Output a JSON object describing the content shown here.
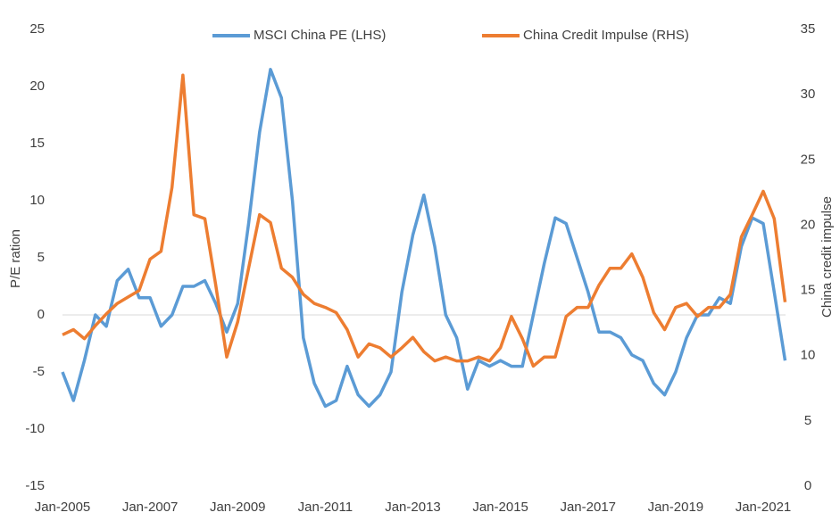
{
  "chart_data": {
    "type": "line",
    "categories": [
      "Jan-2005",
      null,
      null,
      null,
      null,
      null,
      null,
      null,
      "Jan-2007",
      null,
      null,
      null,
      null,
      null,
      null,
      null,
      "Jan-2009",
      null,
      null,
      null,
      null,
      null,
      null,
      null,
      "Jan-2011",
      null,
      null,
      null,
      null,
      null,
      null,
      null,
      "Jan-2013",
      null,
      null,
      null,
      null,
      null,
      null,
      null,
      "Jan-2015",
      null,
      null,
      null,
      null,
      null,
      null,
      null,
      "Jan-2017",
      null,
      null,
      null,
      null,
      null,
      null,
      null,
      "Jan-2019",
      null,
      null,
      null,
      null,
      null,
      null,
      null,
      "Jan-2021",
      null,
      null
    ],
    "series": [
      {
        "name": "MSCI China PE (LHS)",
        "color": "#5b9bd5",
        "axis": "y",
        "values": [
          -5,
          -7.5,
          -4,
          0,
          -1,
          3,
          4,
          1.5,
          1.5,
          -1,
          0,
          2.5,
          2.5,
          3,
          1,
          -1.5,
          1,
          8,
          16,
          21.5,
          19,
          10,
          -2,
          -6,
          -8,
          -7.5,
          -4.5,
          -7,
          -8,
          -7,
          -5,
          2,
          7,
          10.5,
          6,
          0,
          -2,
          -6.5,
          -4,
          -4.5,
          -4,
          -4.5,
          -4.5,
          0,
          4.5,
          8.5,
          8,
          5,
          2,
          -1.5,
          -1.5,
          -2,
          -3.5,
          -4,
          -6,
          -7,
          -5,
          -2,
          0,
          0,
          1.5,
          1,
          6,
          8.5,
          8,
          2,
          -4
        ]
      },
      {
        "name": "China Credit Impulse (RHS)",
        "color": "#ed7d31",
        "axis": "y2",
        "values": [
          11.6,
          12,
          11.3,
          12.3,
          13.2,
          14,
          14.5,
          15,
          17.4,
          18,
          22.9,
          31.5,
          20.8,
          20.5,
          15.4,
          9.9,
          12.6,
          16.7,
          20.8,
          20.2,
          16.7,
          16,
          14.7,
          14,
          13.7,
          13.3,
          12,
          9.9,
          10.9,
          10.6,
          9.9,
          10.6,
          11.4,
          10.3,
          9.6,
          9.9,
          9.6,
          9.6,
          9.9,
          9.6,
          10.6,
          13,
          11.3,
          9.2,
          9.9,
          9.9,
          13,
          13.7,
          13.7,
          15.4,
          16.7,
          16.7,
          17.8,
          16,
          13.3,
          12,
          13.7,
          14,
          13,
          13.7,
          13.7,
          14.7,
          19.1,
          20.8,
          22.6,
          20.5,
          14.1
        ]
      }
    ],
    "ylabel": "P/E ration",
    "y2label": "China credit impulse",
    "ylim": [
      -15,
      25
    ],
    "yticks": [
      -15,
      -10,
      -5,
      0,
      5,
      10,
      15,
      20,
      25
    ],
    "y2lim": [
      0,
      35
    ],
    "y2ticks": [
      0,
      5,
      10,
      15,
      20,
      25,
      30,
      35
    ],
    "zero_line": true,
    "legend": "top"
  }
}
